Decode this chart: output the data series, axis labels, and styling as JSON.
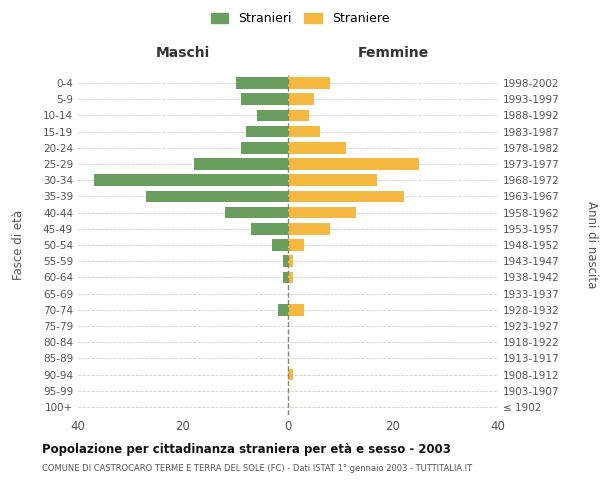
{
  "age_groups": [
    "100+",
    "95-99",
    "90-94",
    "85-89",
    "80-84",
    "75-79",
    "70-74",
    "65-69",
    "60-64",
    "55-59",
    "50-54",
    "45-49",
    "40-44",
    "35-39",
    "30-34",
    "25-29",
    "20-24",
    "15-19",
    "10-14",
    "5-9",
    "0-4"
  ],
  "birth_years": [
    "≤ 1902",
    "1903-1907",
    "1908-1912",
    "1913-1917",
    "1918-1922",
    "1923-1927",
    "1928-1932",
    "1933-1937",
    "1938-1942",
    "1943-1947",
    "1948-1952",
    "1953-1957",
    "1958-1962",
    "1963-1967",
    "1968-1972",
    "1973-1977",
    "1978-1982",
    "1983-1987",
    "1988-1992",
    "1993-1997",
    "1998-2002"
  ],
  "maschi": [
    0,
    0,
    0,
    0,
    0,
    0,
    2,
    0,
    1,
    1,
    3,
    7,
    12,
    27,
    37,
    18,
    9,
    8,
    6,
    9,
    10
  ],
  "femmine": [
    0,
    0,
    1,
    0,
    0,
    0,
    3,
    0,
    1,
    1,
    3,
    8,
    13,
    22,
    17,
    25,
    11,
    6,
    4,
    5,
    8
  ],
  "maschi_color": "#6a9e5f",
  "femmine_color": "#f5b942",
  "bg_color": "#ffffff",
  "grid_color": "#cccccc",
  "axis_label_color": "#555555",
  "dashed_line_color": "#888866",
  "title": "Popolazione per cittadinanza straniera per età e sesso - 2003",
  "subtitle": "COMUNE DI CASTROCARO TERME E TERRA DEL SOLE (FC) - Dati ISTAT 1° gennaio 2003 - TUTTITALIA.IT",
  "xlabel_left": "Maschi",
  "xlabel_right": "Femmine",
  "ylabel_left": "Fasce di età",
  "ylabel_right": "Anni di nascita",
  "legend_stranieri": "Stranieri",
  "legend_straniere": "Straniere",
  "xlim": 40
}
